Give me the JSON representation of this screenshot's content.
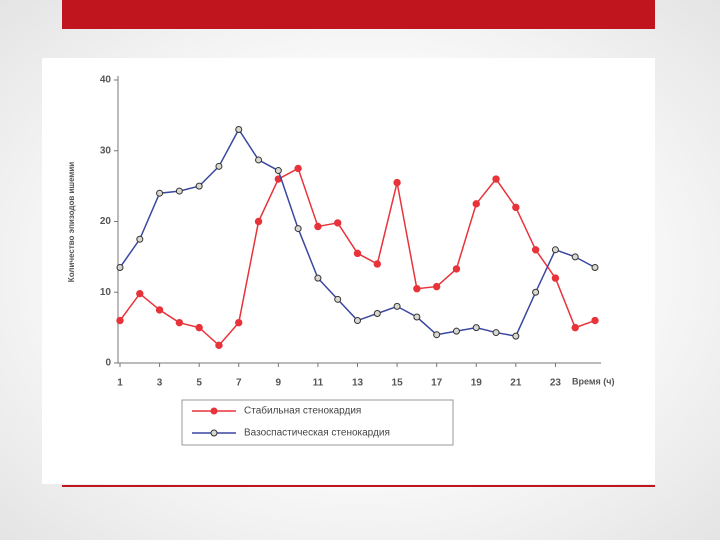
{
  "chart_data": {
    "type": "line",
    "y_label": "Количество эпизодов ишемии",
    "x_label": "Время (ч)",
    "x": [
      1,
      2,
      3,
      4,
      5,
      6,
      7,
      8,
      9,
      10,
      11,
      12,
      13,
      14,
      15,
      16,
      17,
      18,
      19,
      20,
      21,
      22,
      23,
      24,
      25
    ],
    "xlim": [
      1,
      25
    ],
    "xticks": [
      1,
      3,
      5,
      7,
      9,
      11,
      13,
      15,
      17,
      19,
      21,
      23
    ],
    "ylim": [
      0,
      40
    ],
    "yticks": [
      0,
      10,
      20,
      30,
      40
    ],
    "legend": "bottom",
    "series": [
      {
        "name": "Стабильная стенокардия",
        "color": "#e8333a",
        "values": [
          6,
          9.8,
          7.5,
          5.7,
          5,
          2.5,
          5.7,
          20,
          26,
          27.5,
          19.3,
          19.8,
          15.5,
          14,
          25.5,
          10.5,
          10.8,
          13.3,
          22.5,
          26,
          22,
          16,
          12,
          5,
          6
        ]
      },
      {
        "name": "Вазоспастическая стенокардия",
        "color": "#3a47a0",
        "values": [
          13.5,
          17.5,
          24,
          24.3,
          25,
          27.8,
          33,
          28.7,
          27.2,
          19,
          12,
          9,
          6,
          7,
          8,
          6.5,
          4,
          4.5,
          5,
          4.3,
          3.8,
          10,
          16,
          15,
          13.5
        ]
      }
    ]
  }
}
